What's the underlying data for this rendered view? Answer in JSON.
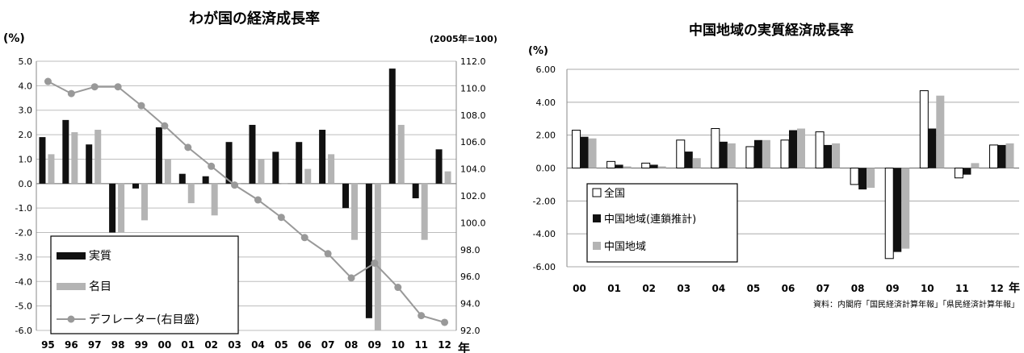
{
  "chart_data": [
    {
      "type": "bar",
      "title": "わが国の経済成長率",
      "ylabel": "(%)",
      "y2label": "(2005年=100)",
      "xunit": "年",
      "categories": [
        "95",
        "96",
        "97",
        "98",
        "99",
        "00",
        "01",
        "02",
        "03",
        "04",
        "05",
        "06",
        "07",
        "08",
        "09",
        "10",
        "11",
        "12"
      ],
      "ylim": [
        -6.0,
        5.0
      ],
      "yticks": [
        "5.0",
        "4.0",
        "3.0",
        "2.0",
        "1.0",
        "0.0",
        "-1.0",
        "-2.0",
        "-3.0",
        "-4.0",
        "-5.0",
        "-6.0"
      ],
      "y2lim": [
        92.0,
        112.0
      ],
      "y2ticks": [
        "112.0",
        "110.0",
        "108.0",
        "106.0",
        "104.0",
        "102.0",
        "100.0",
        "98.0",
        "96.0",
        "94.0",
        "92.0"
      ],
      "grid": true,
      "legend_position": "bottom-left",
      "series": [
        {
          "name": "実質",
          "kind": "bar",
          "color": "#111111",
          "values": [
            1.9,
            2.6,
            1.6,
            -2.0,
            -0.2,
            2.3,
            0.4,
            0.3,
            1.7,
            2.4,
            1.3,
            1.7,
            2.2,
            -1.0,
            -5.5,
            4.7,
            -0.6,
            1.4
          ]
        },
        {
          "name": "名目",
          "kind": "bar",
          "color": "#b4b4b4",
          "values": [
            1.2,
            2.1,
            2.2,
            -2.0,
            -1.5,
            1.0,
            -0.8,
            -1.3,
            0.0,
            1.0,
            0.0,
            0.6,
            1.2,
            -2.3,
            -6.0,
            2.4,
            -2.3,
            0.5
          ]
        },
        {
          "name": "デフレーター(右目盛)",
          "kind": "line",
          "axis": "right",
          "color": "#999999",
          "values": [
            110.5,
            109.6,
            110.1,
            110.1,
            108.7,
            107.2,
            105.6,
            104.2,
            102.8,
            101.7,
            100.4,
            98.9,
            97.7,
            95.9,
            97.0,
            95.2,
            93.1,
            92.6
          ]
        }
      ]
    },
    {
      "type": "bar",
      "title": "中国地域の実質経済成長率",
      "ylabel": "(%)",
      "xunit": "年",
      "categories": [
        "00",
        "01",
        "02",
        "03",
        "04",
        "05",
        "06",
        "07",
        "08",
        "09",
        "10",
        "11",
        "12"
      ],
      "ylim": [
        -6.0,
        6.0
      ],
      "yticks": [
        "6.00",
        "4.00",
        "2.00",
        "0.00",
        "-2.00",
        "-4.00",
        "-6.00"
      ],
      "grid": true,
      "legend_position": "bottom-left",
      "source": "資料：内閣府「国民経済計算年報」「県民経済計算年報」",
      "series": [
        {
          "name": "全国",
          "color": "#ffffff",
          "values": [
            2.3,
            0.4,
            0.3,
            1.7,
            2.4,
            1.3,
            1.7,
            2.2,
            -1.0,
            -5.5,
            4.7,
            -0.6,
            1.4
          ]
        },
        {
          "name": "中国地域(連鎖推計)",
          "color": "#111111",
          "values": [
            1.9,
            0.2,
            0.2,
            1.0,
            1.6,
            1.7,
            2.3,
            1.4,
            -1.3,
            -5.1,
            2.4,
            -0.4,
            1.4
          ]
        },
        {
          "name": "中国地域",
          "color": "#b4b4b4",
          "values": [
            1.8,
            0.1,
            0.1,
            0.6,
            1.5,
            1.7,
            2.4,
            1.5,
            -1.2,
            -4.9,
            4.4,
            0.3,
            1.5
          ]
        }
      ]
    }
  ]
}
